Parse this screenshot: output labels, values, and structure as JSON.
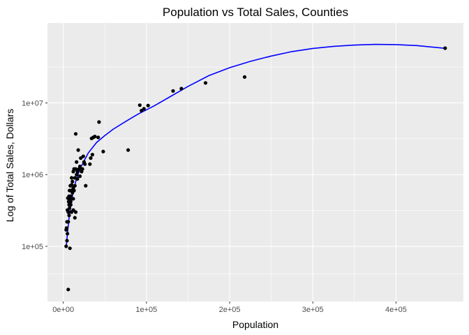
{
  "chart_data": {
    "type": "scatter",
    "title": "Population vs Total Sales, Counties",
    "xlabel": "Population",
    "ylabel": "Log of Total Sales, Dollars",
    "x_scale": "linear",
    "y_scale": "log10",
    "xlim": [
      -19000,
      481000
    ],
    "ylim": [
      17000,
      130000000
    ],
    "x_ticks": [
      {
        "value": 0,
        "label": "0e+00"
      },
      {
        "value": 100000,
        "label": "1e+05"
      },
      {
        "value": 200000,
        "label": "2e+05"
      },
      {
        "value": 300000,
        "label": "3e+05"
      },
      {
        "value": 400000,
        "label": "4e+05"
      }
    ],
    "y_ticks": [
      {
        "value": 100000,
        "label": "1e+05"
      },
      {
        "value": 1000000,
        "label": "1e+06"
      },
      {
        "value": 10000000,
        "label": "1e+07"
      }
    ],
    "grid": true,
    "background": "#ebebeb",
    "grid_color": "#ffffff",
    "point_color": "#000000",
    "trend_color": "#0000ff",
    "points": [
      [
        459000,
        58000000
      ],
      [
        218000,
        23000000
      ],
      [
        171000,
        19000000
      ],
      [
        142000,
        15800000
      ],
      [
        132000,
        14700000
      ],
      [
        102000,
        9200000
      ],
      [
        97000,
        8300000
      ],
      [
        94000,
        7800000
      ],
      [
        92000,
        9300000
      ],
      [
        78000,
        2200000
      ],
      [
        48000,
        2100000
      ],
      [
        43000,
        5400000
      ],
      [
        42000,
        3300000
      ],
      [
        38000,
        3400000
      ],
      [
        36000,
        3300000
      ],
      [
        34000,
        3200000
      ],
      [
        35000,
        1900000
      ],
      [
        33000,
        1700000
      ],
      [
        32000,
        1400000
      ],
      [
        26000,
        1400000
      ],
      [
        25000,
        1500000
      ],
      [
        24000,
        1800000
      ],
      [
        23000,
        1200000
      ],
      [
        22000,
        1100000
      ],
      [
        21000,
        1700000
      ],
      [
        20000,
        1300000
      ],
      [
        19000,
        1200000
      ],
      [
        18000,
        2200000
      ],
      [
        17000,
        1100000
      ],
      [
        16000,
        1500000
      ],
      [
        16000,
        1000000
      ],
      [
        15000,
        3700000
      ],
      [
        15000,
        1200000
      ],
      [
        14000,
        900000
      ],
      [
        14000,
        700000
      ],
      [
        13000,
        1200000
      ],
      [
        13000,
        600000
      ],
      [
        12000,
        1100000
      ],
      [
        12000,
        460000
      ],
      [
        11000,
        800000
      ],
      [
        11000,
        560000
      ],
      [
        10000,
        900000
      ],
      [
        10000,
        720000
      ],
      [
        9500,
        600000
      ],
      [
        9000,
        500000
      ],
      [
        9000,
        380000
      ],
      [
        8500,
        700000
      ],
      [
        8000,
        460000
      ],
      [
        7500,
        600000
      ],
      [
        7500,
        340000
      ],
      [
        7000,
        500000
      ],
      [
        7000,
        270000
      ],
      [
        6500,
        420000
      ],
      [
        6000,
        300000
      ],
      [
        6000,
        220000
      ],
      [
        5500,
        470000
      ],
      [
        5000,
        320000
      ],
      [
        5000,
        150000
      ],
      [
        4500,
        220000
      ],
      [
        4500,
        120000
      ],
      [
        4000,
        180000
      ],
      [
        3500,
        170000
      ],
      [
        3500,
        100000
      ],
      [
        8000,
        94000
      ],
      [
        6000,
        25000
      ],
      [
        27000,
        700000
      ],
      [
        15000,
        300000
      ],
      [
        12000,
        320000
      ],
      [
        14000,
        250000
      ],
      [
        10000,
        300000
      ],
      [
        20000,
        950000
      ],
      [
        17000,
        870000
      ],
      [
        8000,
        420000
      ],
      [
        7000,
        380000
      ],
      [
        12000,
        650000
      ],
      [
        9000,
        420000
      ]
    ],
    "trend": [
      [
        3500,
        95000
      ],
      [
        5000,
        150000
      ],
      [
        7000,
        250000
      ],
      [
        10000,
        450000
      ],
      [
        15000,
        800000
      ],
      [
        20000,
        1200000
      ],
      [
        30000,
        2000000
      ],
      [
        40000,
        2800000
      ],
      [
        50000,
        3500000
      ],
      [
        60000,
        4300000
      ],
      [
        75000,
        5500000
      ],
      [
        90000,
        7000000
      ],
      [
        110000,
        9200000
      ],
      [
        130000,
        12500000
      ],
      [
        150000,
        17000000
      ],
      [
        175000,
        24000000
      ],
      [
        200000,
        31000000
      ],
      [
        225000,
        38000000
      ],
      [
        250000,
        45000000
      ],
      [
        275000,
        52000000
      ],
      [
        300000,
        57500000
      ],
      [
        325000,
        61500000
      ],
      [
        350000,
        64000000
      ],
      [
        375000,
        65500000
      ],
      [
        400000,
        65000000
      ],
      [
        425000,
        63000000
      ],
      [
        460000,
        57500000
      ]
    ]
  }
}
